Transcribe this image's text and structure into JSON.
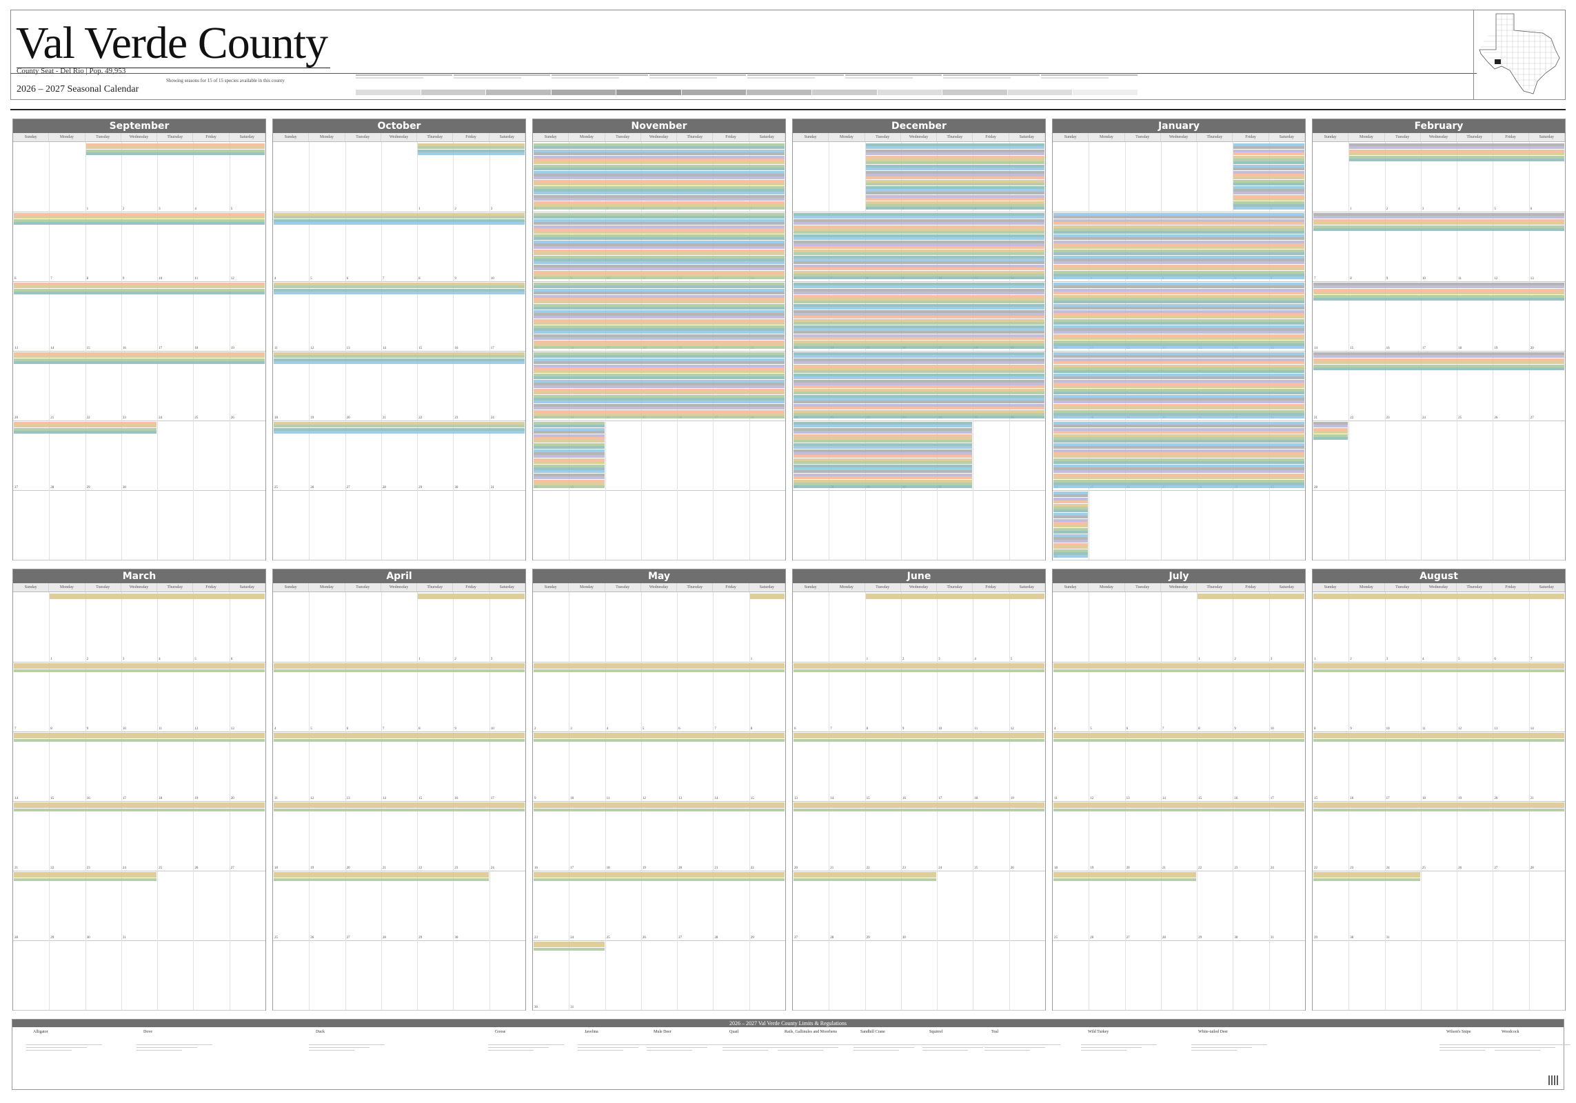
{
  "header": {
    "county_title": "Val Verde County",
    "county_seat_line": "County Seat - Del Rio  |  Pop. 49,953",
    "calendar_title": "2026 – 2027 Seasonal Calendar",
    "seasons_note": "Showing seasons for 15 of 15 species available in this county"
  },
  "colors": {
    "orange": "#f5b593",
    "tan": "#d9c58a",
    "green": "#a9c79a",
    "teal": "#86b8b5",
    "blue": "#8ec3e2",
    "gray": "#a8a8a8",
    "lavender": "#b9b2d6",
    "header_gray": "#6f6f6f"
  },
  "months_top": [
    {
      "name": "September",
      "start": 2,
      "days": 30
    },
    {
      "name": "October",
      "start": 4,
      "days": 31
    },
    {
      "name": "November",
      "start": 0,
      "days": 30
    },
    {
      "name": "December",
      "start": 2,
      "days": 31
    },
    {
      "name": "January",
      "start": 5,
      "days": 31
    },
    {
      "name": "February",
      "start": 1,
      "days": 28
    }
  ],
  "months_bottom": [
    {
      "name": "March",
      "start": 1,
      "days": 31
    },
    {
      "name": "April",
      "start": 4,
      "days": 30
    },
    {
      "name": "May",
      "start": 6,
      "days": 31
    },
    {
      "name": "June",
      "start": 2,
      "days": 30
    },
    {
      "name": "July",
      "start": 4,
      "days": 31
    },
    {
      "name": "August",
      "start": 0,
      "days": 31
    }
  ],
  "weekdays": [
    "Sunday",
    "Monday",
    "Tuesday",
    "Wednesday",
    "Thursday",
    "Friday",
    "Saturday"
  ],
  "limits": {
    "heading": "2026 – 2027  Val Verde County  Limits & Regulations",
    "species": [
      "Alligator",
      "Dove",
      "Duck",
      "Goose",
      "Javelina",
      "Mule Deer",
      "Quail",
      "Rails, Gallinules and Moorhens",
      "Sandhill Crane",
      "Squirrel",
      "Teal",
      "Wild Turkey",
      "White-tailed Deer",
      "Wilson's Snipe",
      "Woodcock"
    ]
  }
}
